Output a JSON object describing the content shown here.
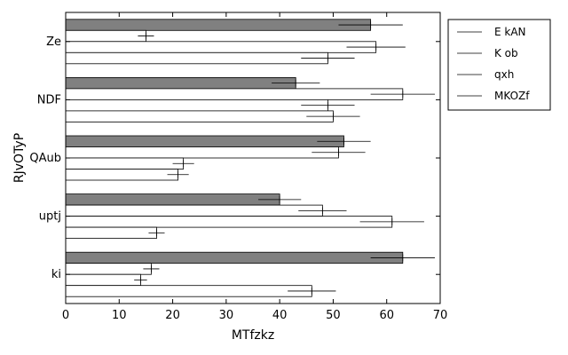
{
  "chart_data": {
    "type": "bar",
    "orientation": "horizontal",
    "xlabel": "MTfzkz",
    "ylabel": "RJvOTyP",
    "xlim": [
      0,
      70
    ],
    "xticks": [
      0,
      10,
      20,
      30,
      40,
      50,
      60,
      70
    ],
    "categories": [
      "Ze",
      "NDF",
      "QAub",
      "uptj",
      "ki"
    ],
    "series": [
      {
        "name": "E kAN",
        "color": "#808080",
        "values": [
          57,
          43,
          52,
          40,
          63
        ],
        "errors": [
          6,
          4.5,
          5,
          4,
          6
        ]
      },
      {
        "name": "K ob",
        "color": "#ffffff",
        "values": [
          15,
          63,
          51,
          48,
          16
        ],
        "errors": [
          1.5,
          6,
          5,
          4.5,
          1.5
        ]
      },
      {
        "name": "qxh",
        "color": "#ffffff",
        "values": [
          58,
          49,
          22,
          61,
          14
        ],
        "errors": [
          5.5,
          5,
          2,
          6,
          1.2
        ]
      },
      {
        "name": "MKOZf",
        "color": "#ffffff",
        "values": [
          49,
          50,
          21,
          17,
          46
        ],
        "errors": [
          5,
          5,
          2,
          1.5,
          4.5
        ]
      }
    ],
    "legend_position": "top-right",
    "grid": false
  }
}
